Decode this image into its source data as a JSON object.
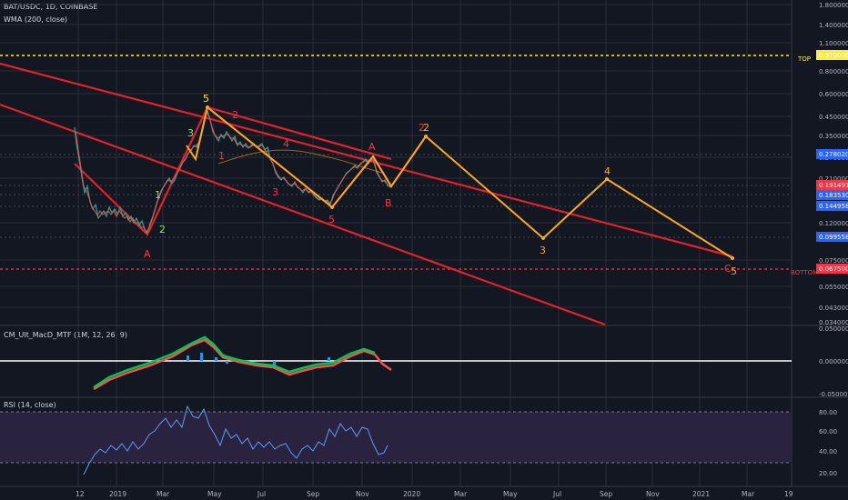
{
  "header": {
    "symbol_line": "BAT/USDC, 1D, COINBASE",
    "indicator_wma": "WMA (200, close)",
    "indicator_macd": "CM_Ult_MacD_MTF (1M, 12, 26, 9)",
    "indicator_rsi": "RSI (14, close)"
  },
  "price_axis": {
    "labels": [
      "1.800000",
      "1.400000",
      "1.100000",
      "0.800000",
      "0.600000",
      "0.450000",
      "0.350000",
      "0.270000",
      "0.210000",
      "0.120000",
      "0.075000",
      "0.055000",
      "0.043000",
      "0.034000"
    ]
  },
  "price_badges": [
    {
      "value": "0.970000",
      "color": "#ffeb3b",
      "text_color": "#131722"
    },
    {
      "value": "0.278020",
      "color": "#2962ff",
      "text_color": "#ffffff"
    },
    {
      "value": "0.191491",
      "color": "#f23645",
      "text_color": "#ffffff"
    },
    {
      "value": "0.183530",
      "color": "#2962ff",
      "text_color": "#ffffff"
    },
    {
      "value": "0.144958",
      "color": "#2962ff",
      "text_color": "#ffffff"
    },
    {
      "value": "0.099558",
      "color": "#2962ff",
      "text_color": "#ffffff"
    },
    {
      "value": "0.067500",
      "color": "#f23645",
      "text_color": "#ffffff"
    }
  ],
  "levels": {
    "top_label": "TOP",
    "bottom_label": "BOTTOM"
  },
  "macd_axis": {
    "labels": [
      "0.050000",
      "0.000000",
      "-0.050000"
    ]
  },
  "rsi_axis": {
    "labels": [
      "80.00",
      "60.00",
      "40.00",
      "20.00"
    ]
  },
  "time_axis": {
    "labels": [
      "12",
      "2019",
      "Mar",
      "May",
      "Jul",
      "Sep",
      "Nov",
      "2020",
      "Mar",
      "May",
      "Jul",
      "Sep",
      "Nov",
      "2021",
      "Mar",
      "19"
    ]
  },
  "wave_labels": {
    "green": [
      "1",
      "2",
      "3"
    ],
    "yellow_five": "5",
    "red": [
      "1",
      "2",
      "3",
      "4",
      "5",
      "A",
      "B",
      "A",
      "2"
    ],
    "orange": [
      "2",
      "3",
      "4",
      "5",
      "C"
    ]
  },
  "colors": {
    "background": "#131722",
    "channel": "#e0222a",
    "projection": "#f7a825",
    "top_line": "#ffeb3b",
    "bottom_line": "#f23645",
    "rsi_band": "#2a2340"
  }
}
